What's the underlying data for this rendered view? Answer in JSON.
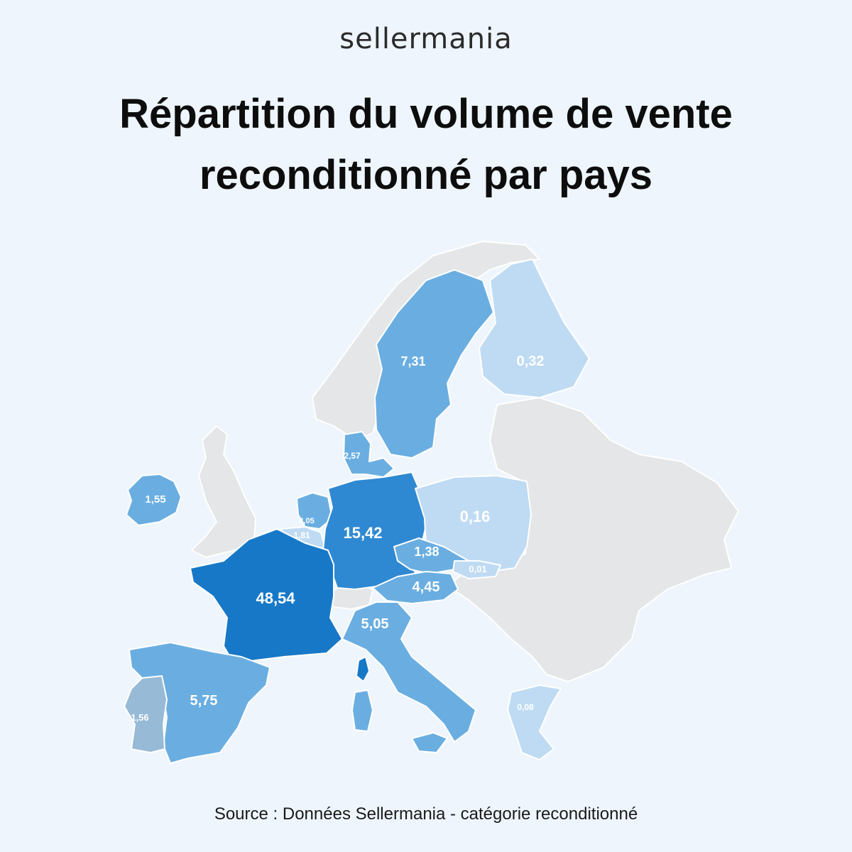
{
  "header": {
    "logo": "sellermania",
    "title_line1": "Répartition du volume de vente",
    "title_line2": "reconditionné par pays"
  },
  "footer": {
    "source": "Source : Données Sellermania - catégorie reconditionné"
  },
  "colors": {
    "background": "#eef5fc",
    "no_data": "#e5e6e8",
    "scale_lightest": "#bfdbf3",
    "scale_light": "#6aaee1",
    "scale_medium": "#2f89d2",
    "scale_darkest": "#1778c7"
  },
  "countries": {
    "france": "48,54",
    "germany": "15,42",
    "sweden": "7,31",
    "spain": "5,75",
    "italy": "5,05",
    "austria": "4,45",
    "netherlands": "4,05",
    "denmark": "2,57",
    "belgium": "1,81",
    "portugal": "1,56",
    "ireland": "1,55",
    "czechia": "1,38",
    "finland": "0,32",
    "poland": "0,16",
    "greece": "0,08",
    "slovakia": "0,01"
  }
}
